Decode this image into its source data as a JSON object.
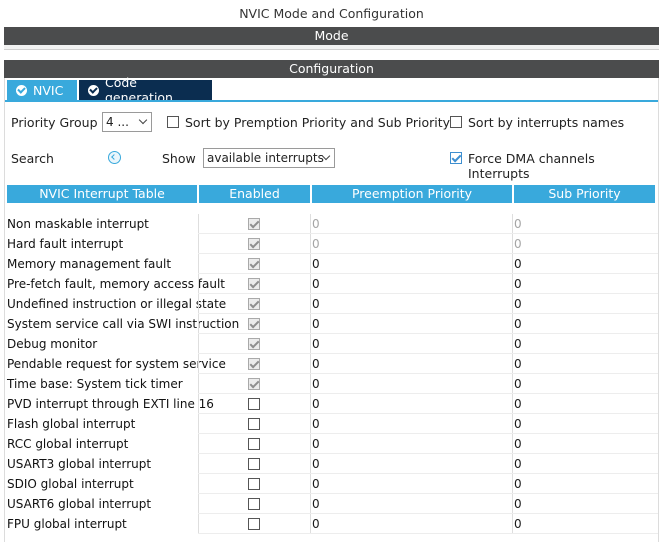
{
  "window_title": "NVIC Mode and Configuration",
  "mode_label": "Mode",
  "config_label": "Configuration",
  "tabs": [
    {
      "label": "NVIC"
    },
    {
      "label": "Code generation"
    }
  ],
  "controls": {
    "priority_group_label": "Priority Group",
    "priority_group_value": "4 ...",
    "sort_premption_label": "Sort by Premption Priority and Sub Priority",
    "sort_premption_checked": false,
    "sort_names_label": "Sort by interrupts names",
    "sort_names_checked": false,
    "search_label": "Search",
    "show_label": "Show",
    "show_value": "available interrupts",
    "force_dma_label": "Force DMA channels Interrupts",
    "force_dma_checked": true
  },
  "table": {
    "headers": [
      "NVIC Interrupt Table",
      "Enabled",
      "Preemption Priority",
      "Sub Priority"
    ],
    "rows": [
      {
        "name": "Non maskable interrupt",
        "enabled": true,
        "locked": true,
        "preemption": "0",
        "sub": "0",
        "prio_disabled": true
      },
      {
        "name": "Hard fault interrupt",
        "enabled": true,
        "locked": true,
        "preemption": "0",
        "sub": "0",
        "prio_disabled": true
      },
      {
        "name": "Memory management fault",
        "enabled": true,
        "locked": true,
        "preemption": "0",
        "sub": "0",
        "prio_disabled": false
      },
      {
        "name": "Pre-fetch fault, memory access fault",
        "enabled": true,
        "locked": true,
        "preemption": "0",
        "sub": "0",
        "prio_disabled": false
      },
      {
        "name": "Undefined instruction or illegal state",
        "enabled": true,
        "locked": true,
        "preemption": "0",
        "sub": "0",
        "prio_disabled": false
      },
      {
        "name": "System service call via SWI instruction",
        "enabled": true,
        "locked": true,
        "preemption": "0",
        "sub": "0",
        "prio_disabled": false
      },
      {
        "name": "Debug monitor",
        "enabled": true,
        "locked": true,
        "preemption": "0",
        "sub": "0",
        "prio_disabled": false
      },
      {
        "name": "Pendable request for system service",
        "enabled": true,
        "locked": true,
        "preemption": "0",
        "sub": "0",
        "prio_disabled": false
      },
      {
        "name": "Time base: System tick timer",
        "enabled": true,
        "locked": true,
        "preemption": "0",
        "sub": "0",
        "prio_disabled": false
      },
      {
        "name": "PVD interrupt through EXTI line 16",
        "enabled": false,
        "locked": false,
        "preemption": "0",
        "sub": "0",
        "prio_disabled": false
      },
      {
        "name": "Flash global interrupt",
        "enabled": false,
        "locked": false,
        "preemption": "0",
        "sub": "0",
        "prio_disabled": false
      },
      {
        "name": "RCC global interrupt",
        "enabled": false,
        "locked": false,
        "preemption": "0",
        "sub": "0",
        "prio_disabled": false
      },
      {
        "name": "USART3 global interrupt",
        "enabled": false,
        "locked": false,
        "preemption": "0",
        "sub": "0",
        "prio_disabled": false
      },
      {
        "name": "SDIO global interrupt",
        "enabled": false,
        "locked": false,
        "preemption": "0",
        "sub": "0",
        "prio_disabled": false
      },
      {
        "name": "USART6 global interrupt",
        "enabled": false,
        "locked": false,
        "preemption": "0",
        "sub": "0",
        "prio_disabled": false
      },
      {
        "name": "FPU global interrupt",
        "enabled": false,
        "locked": false,
        "preemption": "0",
        "sub": "0",
        "prio_disabled": false
      }
    ]
  },
  "colors": {
    "header_bar": "#4b4c4d",
    "accent": "#39a9dc",
    "active_tab_dark": "#0b2d50"
  },
  "icons": [
    "check-circle-icon",
    "search-icon",
    "chevron-down-icon"
  ]
}
